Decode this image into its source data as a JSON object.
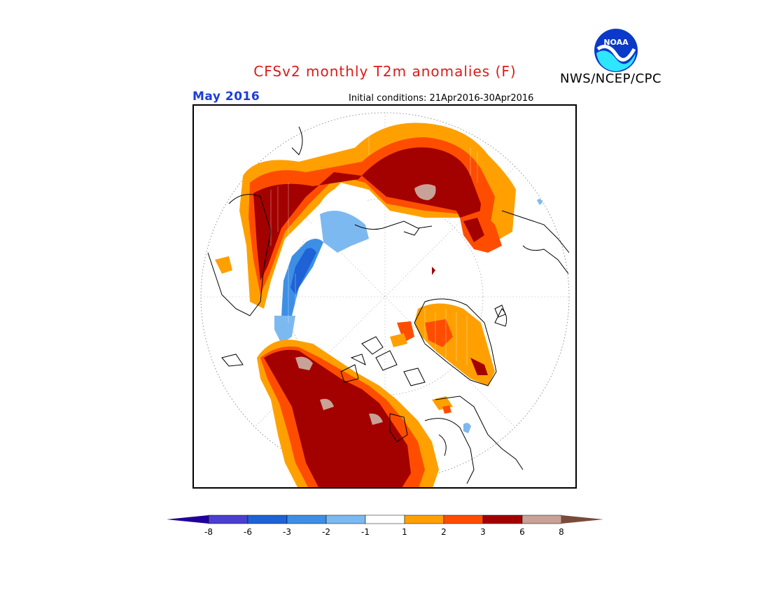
{
  "header": {
    "title": "CFSv2 monthly T2m anomalies (F)",
    "org": "NWS/NCEP/CPC",
    "logo_text": "NOAA",
    "month": "May 2016",
    "initial_conditions": "Initial conditions: 21Apr2016-30Apr2016"
  },
  "colors": {
    "title": "#dd1a1a",
    "month": "#1a3fd8",
    "bins": [
      "#200099",
      "#4a3fd1",
      "#1e62d6",
      "#3d8fe6",
      "#7cb9f0",
      "#ffffff",
      "#ffa000",
      "#ff4d00",
      "#a30000",
      "#c8a296",
      "#7a4a3a"
    ]
  },
  "colorbar": {
    "ticks": [
      "-8",
      "-6",
      "-3",
      "-2",
      "-1",
      "1",
      "2",
      "3",
      "6",
      "8"
    ]
  }
}
